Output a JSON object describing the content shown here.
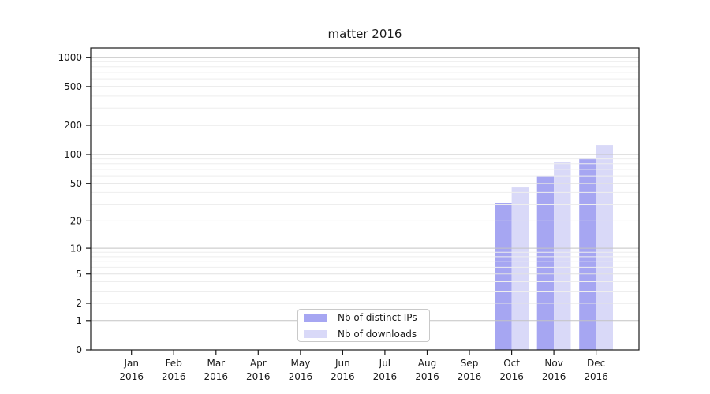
{
  "chart_data": {
    "type": "bar",
    "title": "matter 2016",
    "categories": [
      "Jan",
      "Feb",
      "Mar",
      "Apr",
      "May",
      "Jun",
      "Jul",
      "Aug",
      "Sep",
      "Oct",
      "Nov",
      "Dec"
    ],
    "category_year": "2016",
    "series": [
      {
        "name": "Nb of distinct IPs",
        "color": "#a6a6f2",
        "values": [
          0,
          0,
          0,
          0,
          0,
          0,
          0,
          0,
          0,
          31,
          60,
          91
        ]
      },
      {
        "name": "Nb of downloads",
        "color": "#d9d9f8",
        "values": [
          0,
          0,
          0,
          0,
          0,
          0,
          0,
          0,
          0,
          46,
          84,
          125
        ]
      }
    ],
    "xlabel": "",
    "ylabel": "",
    "yscale": "log1p",
    "ylim": [
      0,
      1244
    ],
    "yticks": [
      0,
      1,
      2,
      5,
      10,
      20,
      50,
      100,
      200,
      500,
      1000
    ],
    "yticks_minor": [
      3,
      4,
      6,
      7,
      8,
      9,
      30,
      40,
      60,
      70,
      80,
      90,
      300,
      400,
      600,
      700,
      800,
      900
    ],
    "grid": "on",
    "legend_position": "lower center"
  },
  "colors": {
    "grid_major_pow10": "#c3c3c3",
    "grid_major": "#e2e2e2",
    "grid_minor": "#eeeeee",
    "spine": "#1a1a1a",
    "text": "#1a1a1a",
    "background": "#ffffff"
  }
}
